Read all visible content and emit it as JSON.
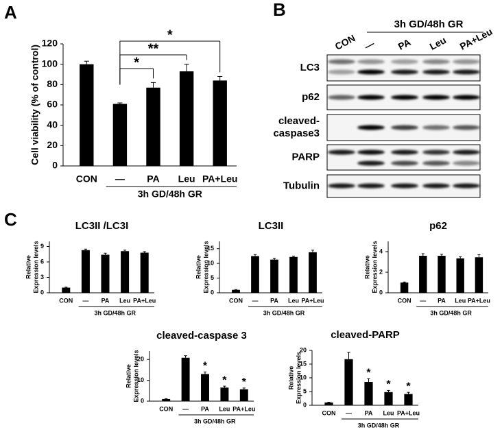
{
  "panel_labels": [
    "A",
    "B",
    "C"
  ],
  "blot": {
    "header": "3h GD/48h GR",
    "lanes": [
      "CON",
      "—",
      "PA",
      "Leu",
      "PA+Leu"
    ],
    "rows": [
      [
        "LC3"
      ],
      [
        "p62"
      ],
      [
        "cleaved-",
        "caspase3"
      ],
      [
        "PARP"
      ],
      [
        "Tubulin"
      ]
    ]
  },
  "chart_data": [
    {
      "type": "bar",
      "ylabel": "Cell viability (% of control)",
      "categories": [
        "CON",
        "—",
        "PA",
        "Leu",
        "PA+Leu"
      ],
      "group_label": "3h GD/48h GR",
      "values": [
        100,
        61,
        77,
        93,
        84
      ],
      "errors": [
        3,
        1,
        5,
        7,
        4
      ],
      "color": "#000000",
      "ylim": [
        0,
        120
      ],
      "yticks": [
        0,
        20,
        40,
        60,
        80,
        100,
        120
      ],
      "comparisons": [
        {
          "from": 1,
          "to": 2,
          "label": "*"
        },
        {
          "from": 1,
          "to": 3,
          "label": "**"
        },
        {
          "from": 1,
          "to": 4,
          "label": "*"
        }
      ]
    },
    {
      "type": "bar",
      "title": "LC3II /LC3I",
      "ylabel": [
        "Relative",
        "Expression levels"
      ],
      "categories": [
        "CON",
        "—",
        "PA",
        "Leu",
        "PA+Leu"
      ],
      "group_label": "3h GD/48h GR",
      "values": [
        1,
        8.3,
        7.4,
        8.1,
        7.8
      ],
      "errors": [
        0.1,
        0.2,
        0.3,
        0.2,
        0.2
      ],
      "color": "#000000",
      "ylim": [
        0,
        10
      ],
      "yticks": [
        0,
        3,
        6,
        9
      ]
    },
    {
      "type": "bar",
      "title": "LC3II",
      "ylabel": [
        "Relative",
        "Expression levels"
      ],
      "categories": [
        "CON",
        "—",
        "PA",
        "Leu",
        "PA+Leu"
      ],
      "group_label": "3h GD/48h GR",
      "values": [
        1,
        12.5,
        11.3,
        12.2,
        13.8
      ],
      "errors": [
        0.1,
        0.5,
        0.5,
        0.3,
        0.7
      ],
      "color": "#000000",
      "ylim": [
        0,
        17.5
      ],
      "yticks": [
        0,
        5,
        10,
        15
      ]
    },
    {
      "type": "bar",
      "title": "p62",
      "ylabel": [
        "Relative",
        "Expression levels"
      ],
      "categories": [
        "CON",
        "—",
        "PA",
        "Leu",
        "PA+Leu"
      ],
      "group_label": "3h GD/48h GR",
      "values": [
        1,
        3.6,
        3.6,
        3.35,
        3.45
      ],
      "errors": [
        0.05,
        0.2,
        0.15,
        0.15,
        0.25
      ],
      "color": "#000000",
      "ylim": [
        0,
        5
      ],
      "yticks": [
        0,
        2,
        4
      ]
    },
    {
      "type": "bar",
      "title": "cleaved-caspase 3",
      "ylabel": [
        "Relative",
        "Expression levels"
      ],
      "categories": [
        "CON",
        "—",
        "PA",
        "Leu",
        "PA+Leu"
      ],
      "group_label": "3h GD/48h GR",
      "values": [
        1,
        20.8,
        13,
        6.5,
        5.7
      ],
      "errors": [
        0.2,
        1,
        1,
        0.7,
        0.6
      ],
      "color": "#000000",
      "ylim": [
        0,
        24
      ],
      "yticks": [
        0,
        10,
        20
      ],
      "significance": [
        null,
        null,
        "*",
        "*",
        "*"
      ]
    },
    {
      "type": "bar",
      "title": "cleaved-PARP",
      "ylabel": [
        "Relative",
        "Expression levels"
      ],
      "categories": [
        "CON",
        "—",
        "PA",
        "Leu",
        "PA+Leu"
      ],
      "group_label": "3h GD/48h GR",
      "values": [
        1,
        16.8,
        8.5,
        4.8,
        4.1
      ],
      "errors": [
        0.1,
        2.5,
        1.2,
        0.6,
        0.6
      ],
      "color": "#000000",
      "ylim": [
        0,
        20
      ],
      "yticks": [
        0,
        5,
        10,
        15,
        20
      ],
      "significance": [
        null,
        null,
        "*",
        "*",
        "*"
      ]
    }
  ]
}
